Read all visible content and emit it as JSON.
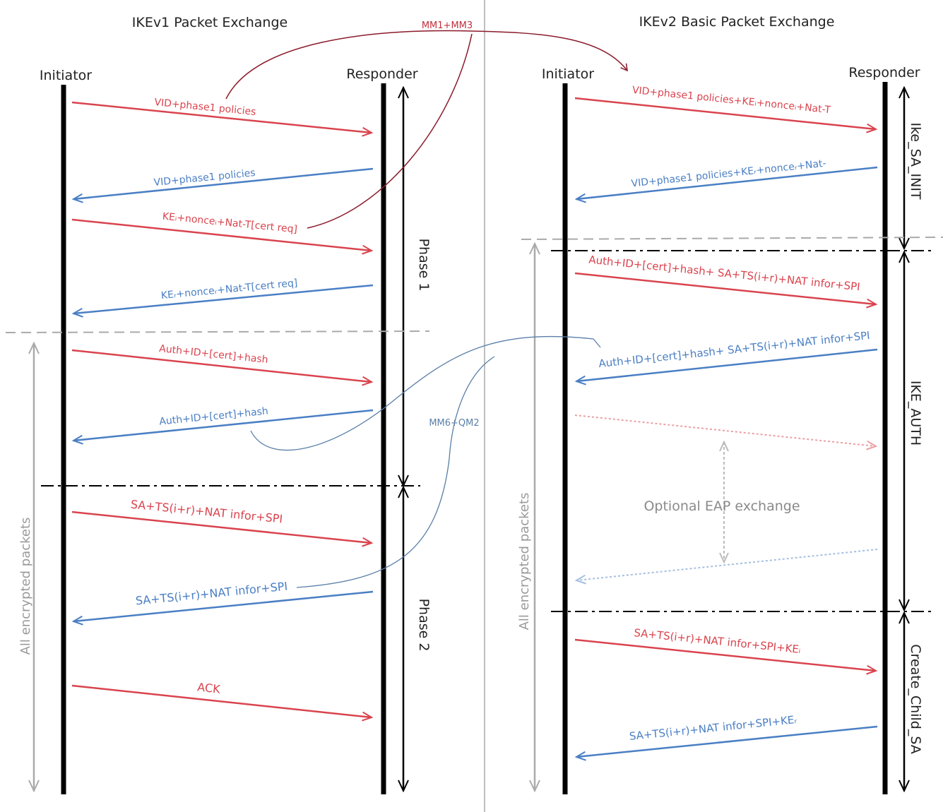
{
  "colors": {
    "request": "#d9444e",
    "response": "#4a7fc4",
    "curve_red": "#8b1a2a",
    "curve_blue": "#5a7fa8",
    "lifeline": "#000000",
    "divider": "#aaaaaa",
    "encrypted": "#aaaaaa"
  },
  "ikev1": {
    "title": "IKEv1 Packet Exchange",
    "initiator": "Initiator",
    "responder": "Responder",
    "messages": [
      {
        "label": "VID+phase1 policies",
        "dir": "right"
      },
      {
        "label": "VID+phase1 policies",
        "dir": "left"
      },
      {
        "label": "KEᵢ+nonceᵢ+Nat-T[cert req]",
        "dir": "right"
      },
      {
        "label": "KEᵣ+nonceᵣ+Nat-T[cert req]",
        "dir": "left"
      },
      {
        "label": "Auth+ID+[cert]+hash",
        "dir": "right"
      },
      {
        "label": "Auth+ID+[cert]+hash",
        "dir": "left"
      },
      {
        "label": "SA+TS(i+r)+NAT infor+SPI",
        "dir": "right"
      },
      {
        "label": "SA+TS(i+r)+NAT infor+SPI",
        "dir": "left"
      },
      {
        "label": "ACK",
        "dir": "right"
      }
    ],
    "phase1": "Phase 1",
    "phase2": "Phase 2",
    "encrypted": "All encrypted packets"
  },
  "ikev2": {
    "title": "IKEv2 Basic Packet Exchange",
    "initiator": "Initiator",
    "responder": "Responder",
    "messages": [
      {
        "label": "VID+phase1 policies+KEᵢ+nonceᵢ+Nat-T",
        "dir": "right"
      },
      {
        "label": "VID+phase1 policies+KEᵣ+nonceᵣ+Nat-",
        "dir": "left"
      },
      {
        "label": "Auth+ID+[cert]+hash+ SA+TS(i+r)+NAT infor+SPI",
        "dir": "right"
      },
      {
        "label": "Auth+ID+[cert]+hash+ SA+TS(i+r)+NAT infor+SPI",
        "dir": "left"
      },
      {
        "label": "SA+TS(i+r)+NAT infor+SPI+KEᵢ",
        "dir": "right"
      },
      {
        "label": "SA+TS(i+r)+NAT infor+SPI+KEᵣ",
        "dir": "left"
      }
    ],
    "eap": "Optional EAP exchange",
    "sa_init": "Ike_SA_INIT",
    "auth": "IKE_AUTH",
    "child_sa": "Create_Child_SA",
    "encrypted": "All encrypted packets"
  },
  "links": {
    "mm1_mm3": "MM1+MM3",
    "mm6_qm2": "MM6+QM2"
  }
}
